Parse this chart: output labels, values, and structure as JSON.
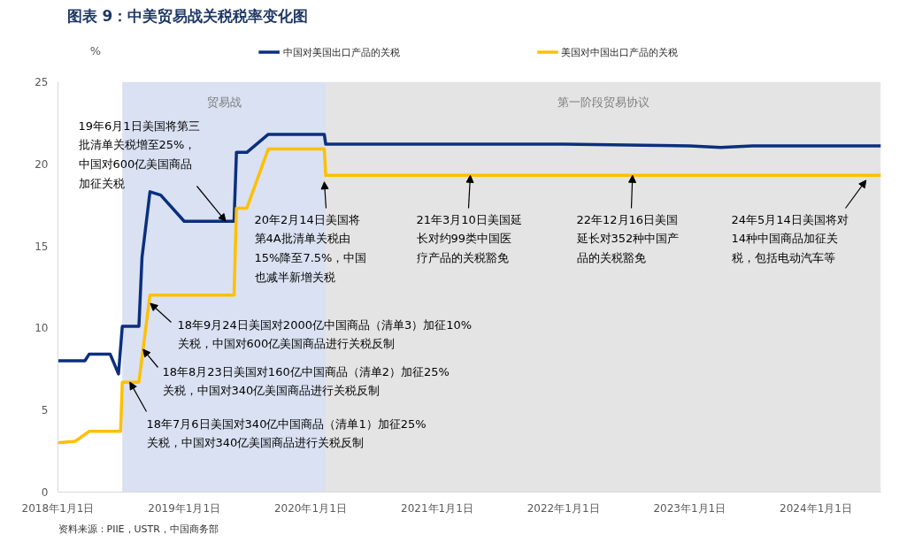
{
  "chart_data": {
    "type": "line",
    "title": "图表 9：中美贸易战关税税率变化图",
    "ylabel": "%",
    "xlim": [
      "2018-01-01",
      "2024-07-07"
    ],
    "ylim": [
      0,
      25
    ],
    "yticks": [
      0,
      5,
      10,
      15,
      20,
      25
    ],
    "xticks": [
      {
        "value": "2018-01-01",
        "label": "2018年1月1日"
      },
      {
        "value": "2019-01-01",
        "label": "2019年1月1日"
      },
      {
        "value": "2020-01-01",
        "label": "2020年1月1日"
      },
      {
        "value": "2021-01-01",
        "label": "2021年1月1日"
      },
      {
        "value": "2022-01-01",
        "label": "2022年1月1日"
      },
      {
        "value": "2023-01-01",
        "label": "2023年1月1日"
      },
      {
        "value": "2024-01-01",
        "label": "2024年1月1日"
      }
    ],
    "grid": false,
    "legend": "top",
    "marker": "none",
    "line_style": "solid",
    "series": [
      {
        "name": "中国对美国出口产品的关税",
        "color": "#0b2f7f",
        "x": [
          "2018-01-01",
          "2018-03-20",
          "2018-04-01",
          "2018-06-01",
          "2018-06-25",
          "2018-07-06",
          "2018-08-23",
          "2018-09-01",
          "2018-09-24",
          "2018-10-25",
          "2019-01-01",
          "2019-05-25",
          "2019-06-01",
          "2019-07-01",
          "2019-09-01",
          "2020-02-10",
          "2020-02-14",
          "2020-07-01",
          "2021-01-01",
          "2022-01-01",
          "2023-01-01",
          "2023-04-01",
          "2023-07-01",
          "2024-07-07"
        ],
        "values": [
          8.0,
          8.0,
          8.4,
          8.4,
          7.2,
          10.1,
          10.1,
          14.3,
          18.3,
          18.1,
          16.5,
          16.5,
          20.7,
          20.7,
          21.8,
          21.8,
          21.2,
          21.2,
          21.2,
          21.2,
          21.1,
          21.0,
          21.1,
          21.1
        ]
      },
      {
        "name": "美国对中国出口产品的关税",
        "color": "#ffc000",
        "x": [
          "2018-01-01",
          "2018-02-20",
          "2018-04-01",
          "2018-07-01",
          "2018-07-06",
          "2018-08-23",
          "2018-09-24",
          "2019-05-25",
          "2019-06-01",
          "2019-07-01",
          "2019-09-01",
          "2020-02-10",
          "2020-02-14",
          "2024-07-07"
        ],
        "values": [
          3.0,
          3.1,
          3.7,
          3.7,
          6.7,
          6.7,
          12.0,
          12.0,
          17.3,
          17.3,
          20.9,
          20.9,
          19.3,
          19.3
        ]
      }
    ],
    "bands": [
      {
        "axis": "x",
        "from": "2018-07-06",
        "to": "2020-02-14",
        "label": "贸易战",
        "color": "#d9e1f2"
      },
      {
        "axis": "x",
        "from": "2020-02-14",
        "to": "2024-07-07",
        "label": "第一阶段贸易协议",
        "color": "#e4e4e4"
      }
    ],
    "annotations": [
      {
        "text": "19年6月1日美国将第三批清单关税增至25%，中国对600亿美国商品加征关税",
        "x": "2019-05-01",
        "y": 16.5
      },
      {
        "text": "20年2月14日美国将第4A批清单关税由15%降至7.5%，中国也减半新增关税",
        "x": "2020-02-10",
        "y": 18.9
      },
      {
        "text": "21年3月10日美国延长对约99类中国医疗产品的关税豁免",
        "x": "2021-04-07",
        "y": 19.3
      },
      {
        "text": "22年12月16日美国延长对352种中国产品的关税豁免",
        "x": "2022-07-20",
        "y": 19.3
      },
      {
        "text": "24年5月14日美国将对14种中国商品加征关税，包括电动汽车等",
        "x": "2024-05-25",
        "y": 19.0
      },
      {
        "text": "18年9月24日美国对2000亿中国商品（清单3）加征10%关税，中国对600亿美国商品进行关税反制",
        "x": "2018-09-25",
        "y": 11.5
      },
      {
        "text": "18年8月23日美国对160亿中国商品（清单2）加征25%关税，中国对340亿美国商品进行关税反制",
        "x": "2018-09-04",
        "y": 8.7
      },
      {
        "text": "18年7月6日美国对340亿中国商品（清单1）加征25%关税，中国对340亿美国商品进行关税反制",
        "x": "2018-07-28",
        "y": 6.7
      },
      "资料来源：PIIE，USTR，中国商务部"
    ]
  }
}
